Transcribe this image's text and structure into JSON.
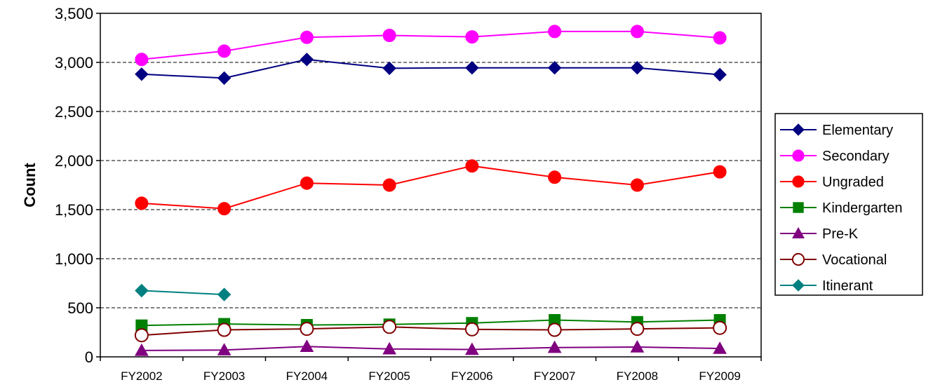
{
  "chart_data": {
    "type": "line",
    "title": "",
    "xlabel": "",
    "ylabel": "Count",
    "ylim": [
      0,
      3500
    ],
    "yticks": [
      "0",
      "500",
      "1,000",
      "1,500",
      "2,000",
      "2,500",
      "3,000",
      "3,500"
    ],
    "ytick_values": [
      0,
      500,
      1000,
      1500,
      2000,
      2500,
      3000,
      3500
    ],
    "categories": [
      "FY2002",
      "FY2003",
      "FY2004",
      "FY2005",
      "FY2006",
      "FY2007",
      "FY2008",
      "FY2009"
    ],
    "grid": "horizontal dashed",
    "legend_position": "right",
    "series": [
      {
        "name": "Elementary",
        "color": "#000080",
        "marker": "diamond",
        "values": [
          2880,
          2840,
          3030,
          2940,
          2945,
          2945,
          2945,
          2875
        ]
      },
      {
        "name": "Secondary",
        "color": "#ff00ff",
        "marker": "circle",
        "values": [
          3030,
          3115,
          3255,
          3275,
          3260,
          3315,
          3315,
          3250
        ]
      },
      {
        "name": "Ungraded",
        "color": "#ff0000",
        "marker": "circle",
        "values": [
          1565,
          1510,
          1770,
          1750,
          1945,
          1830,
          1750,
          1885
        ]
      },
      {
        "name": "Kindergarten",
        "color": "#008000",
        "marker": "square",
        "values": [
          320,
          335,
          325,
          330,
          345,
          375,
          355,
          375
        ]
      },
      {
        "name": "Pre-K",
        "color": "#800080",
        "marker": "triangle",
        "values": [
          65,
          70,
          105,
          80,
          75,
          95,
          100,
          85
        ]
      },
      {
        "name": "Vocational",
        "color": "#800000",
        "marker": "open-circle",
        "values": [
          220,
          275,
          285,
          305,
          280,
          275,
          285,
          295
        ]
      },
      {
        "name": "Itinerant",
        "color": "#008080",
        "marker": "diamond",
        "values": [
          675,
          635,
          null,
          null,
          null,
          null,
          null,
          null
        ]
      }
    ]
  }
}
